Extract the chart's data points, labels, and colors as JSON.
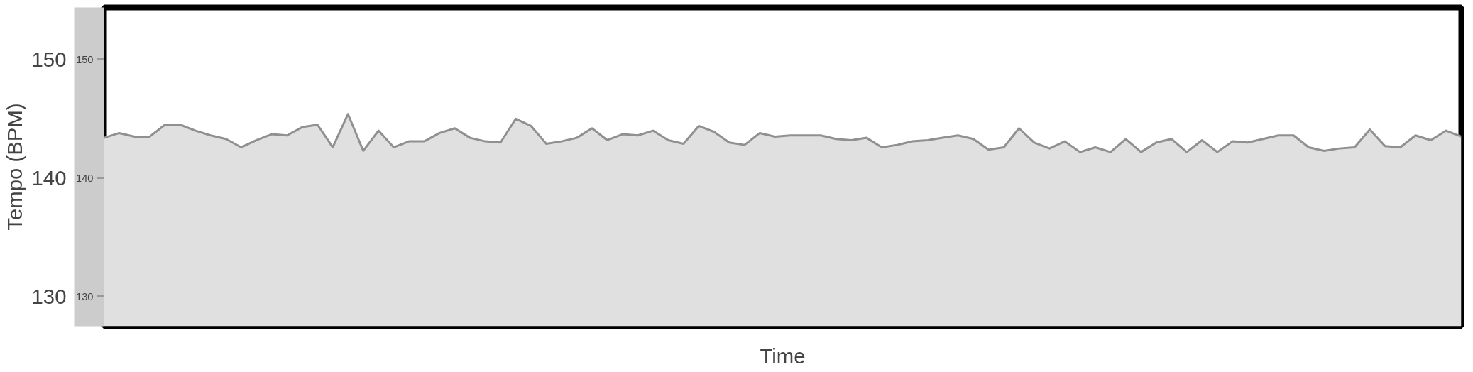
{
  "chart_data": {
    "type": "area",
    "xlabel": "Time",
    "ylabel": "Tempo (BPM)",
    "categories": [
      null,
      null,
      null,
      null,
      null,
      null,
      null,
      null,
      null,
      null,
      null,
      null,
      null,
      null,
      null,
      null,
      null,
      null,
      null,
      null,
      null,
      null,
      null,
      null,
      null,
      null,
      null,
      null,
      null,
      null,
      null,
      null,
      null,
      null,
      null,
      null,
      null,
      null,
      null,
      null,
      null,
      null,
      null,
      null,
      null,
      null,
      null,
      null,
      null,
      null,
      null,
      null,
      null,
      null,
      null,
      null,
      null,
      null,
      null,
      null,
      null,
      null,
      null,
      null,
      null,
      null,
      null,
      null,
      null,
      null,
      null,
      null,
      null,
      null,
      null,
      null,
      null,
      null,
      null,
      null,
      null,
      null,
      null,
      null,
      null,
      null,
      null,
      null,
      null,
      null
    ],
    "series": [
      {
        "color": "#909090",
        "values": [
          143.4,
          143.8,
          143.5,
          143.5,
          144.5,
          144.5,
          144.0,
          143.6,
          143.3,
          142.6,
          143.2,
          143.7,
          143.6,
          144.3,
          144.5,
          142.6,
          145.4,
          142.3,
          144.0,
          142.6,
          143.1,
          143.1,
          143.8,
          144.2,
          143.4,
          143.1,
          143.0,
          145.0,
          144.4,
          142.9,
          143.1,
          143.4,
          144.2,
          143.2,
          143.7,
          143.6,
          144.0,
          143.2,
          142.9,
          144.4,
          143.9,
          143.0,
          142.8,
          143.8,
          143.5,
          143.6,
          143.6,
          143.6,
          143.3,
          143.2,
          143.4,
          142.6,
          142.8,
          143.1,
          143.2,
          143.4,
          143.6,
          143.3,
          142.4,
          142.6,
          144.2,
          143.0,
          142.5,
          143.1,
          142.2,
          142.6,
          142.2,
          143.3,
          142.2,
          143.0,
          143.3,
          142.2,
          143.2,
          142.2,
          143.1,
          143.0,
          143.3,
          143.6,
          143.6,
          142.6,
          142.3,
          142.5,
          142.6,
          144.1,
          142.7,
          142.6,
          143.6,
          143.2,
          144.0,
          143.5
        ]
      }
    ],
    "ylim": [
      127.5,
      154.4
    ],
    "yticks": [
      130,
      140,
      150
    ],
    "y2lim": [
      127.5,
      154.4
    ],
    "y2ticks": [
      130,
      140,
      150
    ]
  }
}
